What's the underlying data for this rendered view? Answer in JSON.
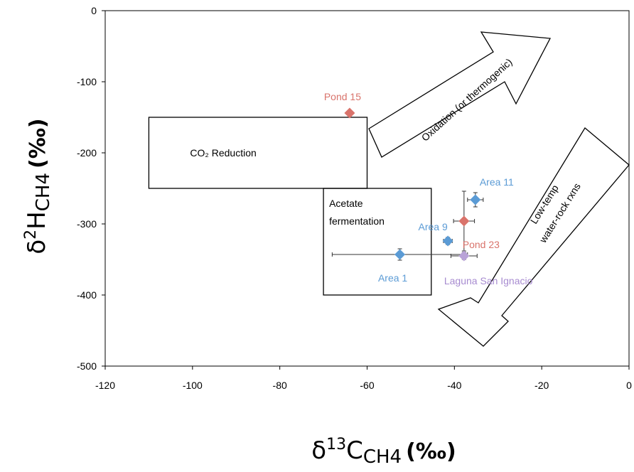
{
  "chart_data": {
    "type": "scatter",
    "xlabel": {
      "base": "δ",
      "sup": "13",
      "main": "C",
      "sub": "CH4",
      "unit": "(‰)"
    },
    "ylabel": {
      "base": "δ",
      "sup": "2",
      "main": "H",
      "sub": "CH4",
      "unit": "(‰)"
    },
    "xlim": [
      -120,
      0
    ],
    "ylim": [
      -500,
      0
    ],
    "xticks": [
      -120,
      -100,
      -80,
      -60,
      -40,
      -20,
      0
    ],
    "yticks": [
      0,
      -100,
      -200,
      -300,
      -400,
      -500
    ],
    "xtick_labels": [
      "-120",
      "-100",
      "-80",
      "-60",
      "-40",
      "-20",
      "0"
    ],
    "ytick_labels": [
      "0",
      "-100",
      "-200",
      "-300",
      "-400",
      "-500"
    ],
    "grid": false,
    "points": [
      {
        "label": "Pond 15",
        "x": -64,
        "y": -144,
        "xerr": [
          0,
          0
        ],
        "yerr": [
          0,
          0
        ],
        "color": "#d9736b",
        "label_color": "#d9736b",
        "label_dx": -10,
        "label_dy": -18,
        "anchor": "middle"
      },
      {
        "label": "Area 11",
        "x": -35.2,
        "y": -266,
        "xerr": [
          1.8,
          1.8
        ],
        "yerr": [
          10,
          10
        ],
        "color": "#5b9bd5",
        "label_color": "#5b9bd5",
        "label_dx": 30,
        "label_dy": -20,
        "anchor": "middle"
      },
      {
        "label": "Area 9",
        "x": -41.5,
        "y": -324,
        "xerr": [
          1.0,
          1.0
        ],
        "yerr": [
          5,
          5
        ],
        "color": "#5b9bd5",
        "label_color": "#5b9bd5",
        "label_dx": -21,
        "label_dy": -15,
        "anchor": "middle"
      },
      {
        "label": "Pond 23",
        "x": -37.8,
        "y": -296,
        "xerr": [
          2.4,
          2.4
        ],
        "yerr": [
          42,
          42
        ],
        "color": "#d9736b",
        "label_color": "#d9736b",
        "label_dx": 24,
        "label_dy": 38,
        "anchor": "middle"
      },
      {
        "label": "Area 1",
        "x": -52.5,
        "y": -343,
        "xerr": [
          15.5,
          15.5
        ],
        "yerr": [
          8,
          8
        ],
        "color": "#5b9bd5",
        "label_color": "#5b9bd5",
        "label_dx": -10,
        "label_dy": 38,
        "anchor": "middle"
      },
      {
        "label": "Laguna San Ignacio",
        "x": -37.8,
        "y": -345,
        "xerr": [
          3.0,
          3.0
        ],
        "yerr": [
          5,
          5
        ],
        "color": "#b9a3d8",
        "label_color": "#a78bd0",
        "label_dx": -28,
        "label_dy": 40,
        "anchor": "start"
      }
    ],
    "regions": [
      {
        "label": "CO₂ Reduction",
        "x": [
          -110,
          -60
        ],
        "y": [
          -150,
          -250
        ]
      },
      {
        "label_lines": [
          "Acetate",
          "fermentation"
        ],
        "x": [
          -70,
          -45.3
        ],
        "y": [
          -250,
          -400
        ]
      }
    ],
    "arrows": [
      {
        "label": "Oxidation (or thermogenic)"
      },
      {
        "label_lines": [
          "Low-temp",
          "water-rock rxns"
        ]
      }
    ],
    "colors": {
      "axis": "#000000",
      "box": "#000000",
      "errorbar": "#333333"
    }
  }
}
